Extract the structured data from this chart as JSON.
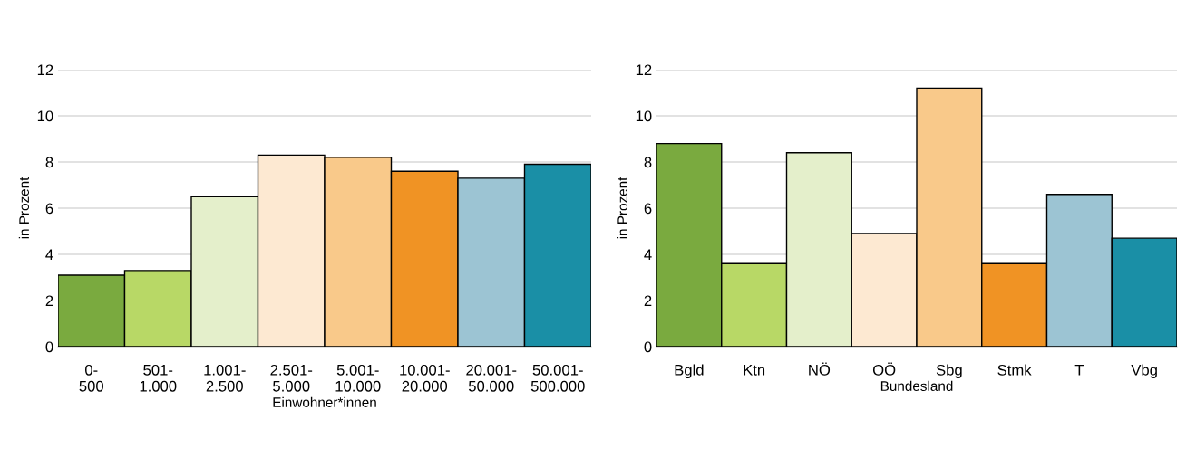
{
  "chart_data": [
    {
      "type": "bar",
      "xlabel": "Einwohner*innen",
      "ylabel": "in Prozent",
      "categories": [
        "0-\n500",
        "501-\n1.000",
        "1.001-\n2.500",
        "2.501-\n5.000",
        "5.001-\n10.000",
        "10.001-\n20.000",
        "20.001-\n50.000",
        "50.001-\n500.000"
      ],
      "values": [
        3.1,
        3.3,
        6.5,
        8.3,
        8.2,
        7.6,
        7.3,
        7.9
      ],
      "colors": [
        "#7aaa3f",
        "#b8d866",
        "#e4efcb",
        "#fde9d2",
        "#f9c98a",
        "#f09324",
        "#9cc4d3",
        "#1a8fa6"
      ],
      "ylim": [
        0,
        12
      ],
      "yticks": [
        0,
        2,
        4,
        6,
        8,
        10,
        12
      ],
      "grid": "y"
    },
    {
      "type": "bar",
      "xlabel": "Bundesland",
      "ylabel": "in Prozent",
      "categories": [
        "Bgld",
        "Ktn",
        "NÖ",
        "OÖ",
        "Sbg",
        "Stmk",
        "T",
        "Vbg"
      ],
      "values": [
        8.8,
        3.6,
        8.4,
        4.9,
        11.2,
        3.6,
        6.6,
        4.7
      ],
      "colors": [
        "#7aaa3f",
        "#b8d866",
        "#e4efcb",
        "#fde9d2",
        "#f9c98a",
        "#f09324",
        "#9cc4d3",
        "#1a8fa6"
      ],
      "ylim": [
        0,
        12
      ],
      "yticks": [
        0,
        2,
        4,
        6,
        8,
        10,
        12
      ],
      "grid": "y"
    }
  ]
}
